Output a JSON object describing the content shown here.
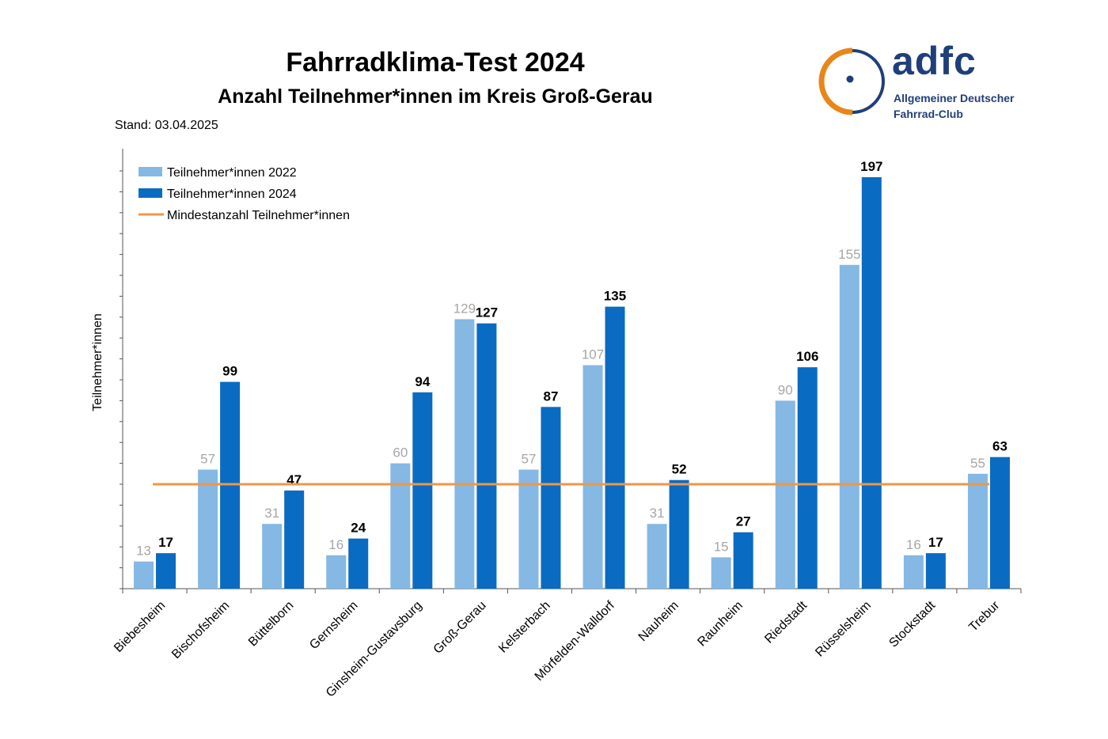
{
  "title": "Fahrradklima-Test 2024",
  "subtitle": "Anzahl Teilnehmer*innen im Kreis Groß-Gerau",
  "stand": "Stand: 03.04.2025",
  "logo": {
    "word": "adfc",
    "line1": "Allgemeiner Deutscher",
    "line2": "Fahrrad-Club",
    "colors": {
      "navy": "#1f3f7a",
      "orange": "#e8861a"
    }
  },
  "chart_data": {
    "type": "bar",
    "ylabel": "Teilnehmer*innen",
    "xlabel": "",
    "ylim": [
      0,
      200
    ],
    "categories": [
      "Biebesheim",
      "Bischofsheim",
      "Büttelborn",
      "Gernsheim",
      "Ginsheim-Gustavsburg",
      "Groß-Gerau",
      "Kelsterbach",
      "Mörfelden-Walldorf",
      "Nauheim",
      "Raunheim",
      "Riedstadt",
      "Rüsselsheim",
      "Stockstadt",
      "Trebur"
    ],
    "series": [
      {
        "name": "Teilnehmer*innen 2022",
        "color": "#85b8e3",
        "label_color": "#a6a6a6",
        "values": [
          13,
          57,
          31,
          16,
          60,
          129,
          57,
          107,
          31,
          15,
          90,
          155,
          16,
          55
        ]
      },
      {
        "name": "Teilnehmer*innen 2024",
        "color": "#0a6bc2",
        "label_color": "#000000",
        "values": [
          17,
          99,
          47,
          24,
          94,
          127,
          87,
          135,
          52,
          27,
          106,
          197,
          17,
          63
        ]
      }
    ],
    "reference_line": {
      "name": "Mindestanzahl Teilnehmer*innen",
      "value": 50,
      "color": "#f0964a"
    },
    "legend_position": "top-left",
    "grid": false
  }
}
